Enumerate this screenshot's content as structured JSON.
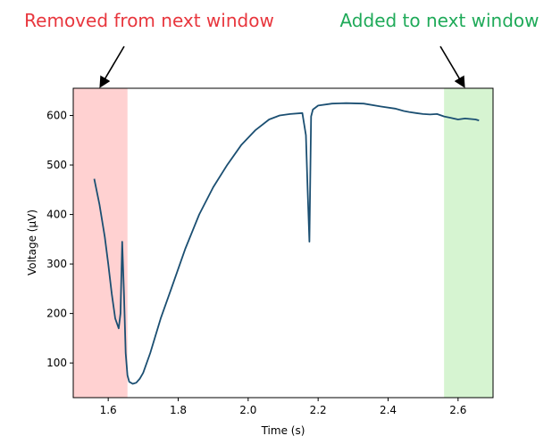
{
  "chart_data": {
    "type": "line",
    "title": "",
    "xlabel": "Time (s)",
    "ylabel": "Voltage (μV)",
    "xlim": [
      1.5,
      2.7
    ],
    "ylim": [
      30,
      655
    ],
    "xticks": [
      1.6,
      1.8,
      2.0,
      2.2,
      2.4,
      2.6
    ],
    "yticks": [
      100,
      200,
      300,
      400,
      500,
      600
    ],
    "grid": false,
    "highlight_regions": [
      {
        "x_start": 1.5,
        "x_end": 1.655,
        "color": "#ffd1d1",
        "annotation": "Removed from next window",
        "annotation_color": "#e8363d"
      },
      {
        "x_start": 2.56,
        "x_end": 2.7,
        "color": "#d6f4d1",
        "annotation": "Added to next window",
        "annotation_color": "#1faa59"
      }
    ],
    "series": [
      {
        "color": "#1b4f72",
        "x": [
          1.56,
          1.575,
          1.59,
          1.6,
          1.61,
          1.62,
          1.63,
          1.635,
          1.64,
          1.645,
          1.65,
          1.655,
          1.66,
          1.67,
          1.68,
          1.69,
          1.7,
          1.72,
          1.75,
          1.78,
          1.82,
          1.86,
          1.9,
          1.94,
          1.98,
          2.02,
          2.06,
          2.09,
          2.12,
          2.155,
          2.165,
          2.17,
          2.175,
          2.18,
          2.185,
          2.2,
          2.24,
          2.28,
          2.33,
          2.38,
          2.42,
          2.445,
          2.46,
          2.48,
          2.5,
          2.52,
          2.54,
          2.56,
          2.58,
          2.6,
          2.62,
          2.65,
          2.66
        ],
        "y": [
          472,
          420,
          355,
          300,
          240,
          190,
          170,
          200,
          345,
          240,
          120,
          75,
          62,
          58,
          60,
          68,
          80,
          120,
          190,
          250,
          330,
          400,
          455,
          500,
          540,
          570,
          592,
          600,
          603,
          605,
          560,
          450,
          345,
          598,
          612,
          620,
          624,
          625,
          624,
          618,
          614,
          609,
          607,
          605,
          603,
          602,
          603,
          598,
          595,
          592,
          594,
          592,
          590
        ]
      }
    ]
  }
}
